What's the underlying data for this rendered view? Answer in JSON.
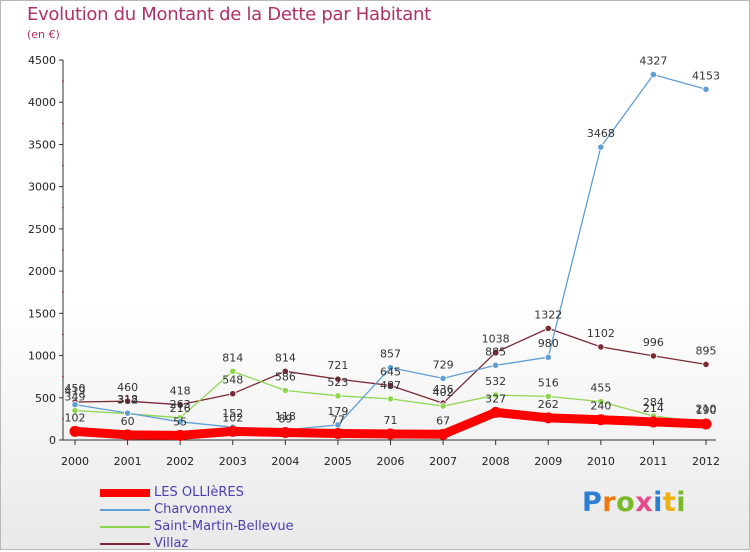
{
  "header": {
    "title": "Evolution du Montant de la Dette par Habitant",
    "unit": "(en €)"
  },
  "logo": {
    "letters": [
      "P",
      "r",
      "o",
      "x",
      "i",
      "t",
      "i"
    ],
    "colors": [
      "#2a7fd4",
      "#f07a10",
      "#7ab82a",
      "#e64a8a",
      "#2a7fd4",
      "#f0b010",
      "#7ab82a"
    ]
  },
  "chart_data": {
    "type": "line",
    "title": "Evolution du Montant de la Dette par Habitant",
    "subtitle": "(en €)",
    "categories": [
      "2000",
      "2001",
      "2002",
      "2003",
      "2004",
      "2005",
      "2006",
      "2007",
      "2008",
      "2009",
      "2010",
      "2011",
      "2012"
    ],
    "ylim": [
      0,
      4500
    ],
    "yticks": [
      0,
      500,
      1000,
      1500,
      2000,
      2500,
      3000,
      3500,
      4000,
      4500
    ],
    "grid": false,
    "legend_position": "bottom-left",
    "series": [
      {
        "name": "LES OLLIèRES",
        "color": "#ff0000",
        "values": [
          102,
          60,
          55,
          102,
          89,
          77,
          71,
          67,
          327,
          262,
          240,
          214,
          190
        ],
        "labels": [
          "102",
          "60",
          "55",
          "102",
          "89",
          "77",
          "71",
          "67",
          "327",
          "262",
          "240",
          "214",
          "190"
        ]
      },
      {
        "name": "Charvonnex",
        "color": "#5f9fd6",
        "values": [
          419,
          318,
          216,
          152,
          118,
          179,
          857,
          729,
          885,
          980,
          3468,
          4327,
          4153
        ],
        "labels": [
          "419",
          "318",
          "216",
          "152",
          "118",
          "179",
          "857",
          "729",
          "885",
          "980",
          "3468",
          "4327",
          "4153"
        ]
      },
      {
        "name": "Saint-Martin-Bellevue",
        "color": "#8fd650",
        "values": [
          349,
          312,
          263,
          814,
          586,
          523,
          487,
          402,
          532,
          516,
          455,
          284,
          210
        ],
        "labels": [
          "349",
          "312",
          "263",
          "814",
          "586",
          "523",
          "487",
          "402",
          "532",
          "516",
          "455",
          "284",
          "210"
        ]
      },
      {
        "name": "Villaz",
        "color": "#7a2a35",
        "values": [
          450,
          460,
          418,
          548,
          814,
          721,
          645,
          436,
          1038,
          1322,
          1102,
          996,
          895
        ],
        "labels": [
          "450",
          "460",
          "418",
          "548",
          "814",
          "721",
          "645",
          "436",
          "1038",
          "1322",
          "1102",
          "996",
          "895"
        ]
      }
    ]
  }
}
